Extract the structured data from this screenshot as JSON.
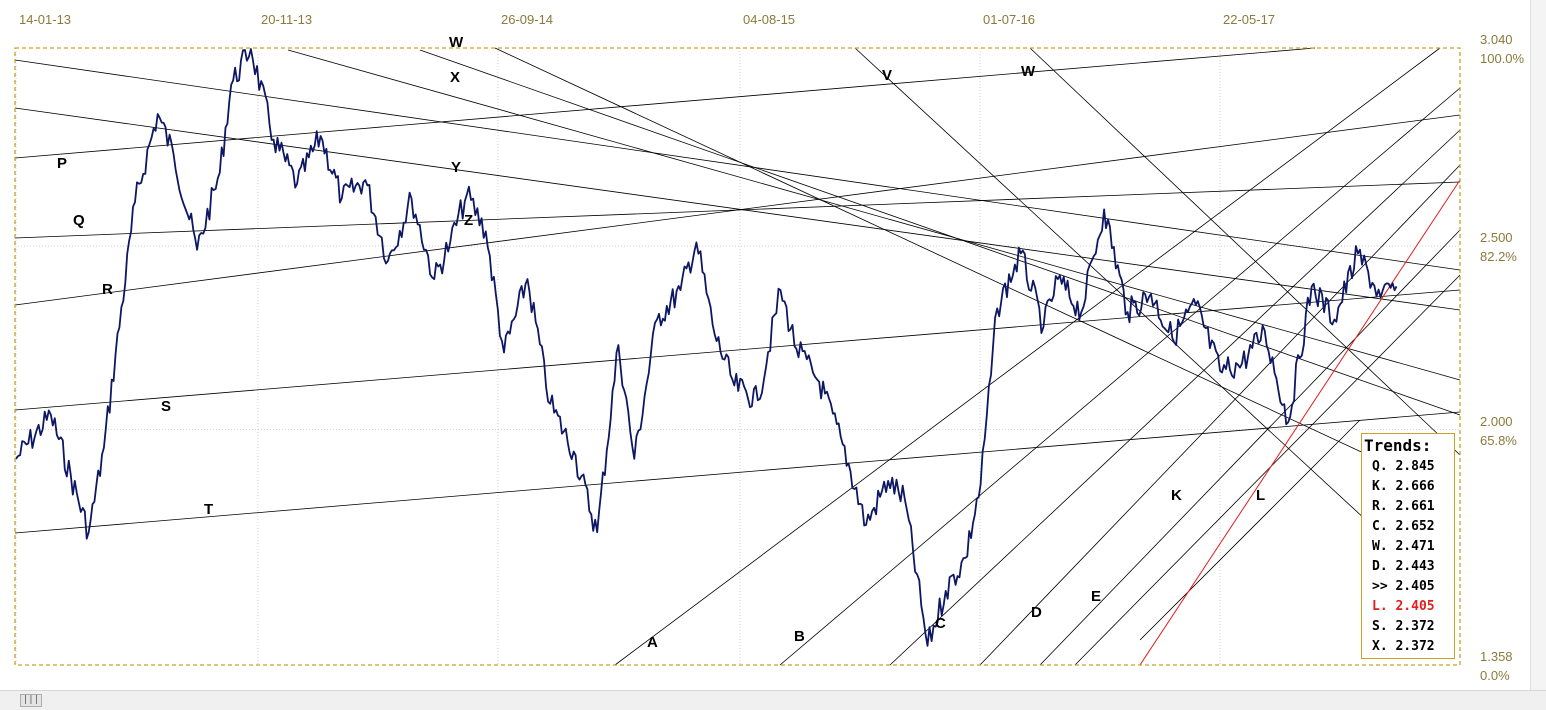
{
  "chart_data": {
    "type": "line",
    "title": "",
    "x_ticks": [
      "14-01-13",
      "20-11-13",
      "26-09-14",
      "04-08-15",
      "01-07-16",
      "22-05-17"
    ],
    "y_ticks_right": [
      {
        "value": "3.040",
        "pct": "100.0%"
      },
      {
        "value": "2.500",
        "pct": "82.2%"
      },
      {
        "value": "2.000",
        "pct": "65.8%"
      },
      {
        "value": "1.358",
        "pct": "0.0%"
      }
    ],
    "ylim": [
      1.358,
      3.04
    ],
    "series": [
      {
        "color": "#0d1763",
        "x": [
          "2013-01-14",
          "2013-03-01",
          "2013-04-20",
          "2013-05-10",
          "2013-06-20",
          "2013-07-20",
          "2013-08-10",
          "2013-09-10",
          "2013-10-10",
          "2013-10-25",
          "2013-11-20",
          "2013-12-20",
          "2014-01-20",
          "2014-02-20",
          "2014-03-20",
          "2014-04-20",
          "2014-05-20",
          "2014-06-20",
          "2014-07-20",
          "2014-08-10",
          "2014-09-01",
          "2014-09-26",
          "2014-10-20",
          "2014-11-20",
          "2014-12-20",
          "2015-01-20",
          "2015-02-20",
          "2015-03-20",
          "2015-04-10",
          "2015-05-10",
          "2015-06-10",
          "2015-07-01",
          "2015-07-25",
          "2015-08-20",
          "2015-09-20",
          "2015-10-20",
          "2015-11-10",
          "2015-12-10",
          "2016-01-10",
          "2016-02-10",
          "2016-03-10",
          "2016-04-01",
          "2016-05-01",
          "2016-05-25",
          "2016-06-20",
          "2016-07-10",
          "2016-08-01",
          "2016-09-01",
          "2016-10-01",
          "2016-10-20",
          "2016-11-20",
          "2016-12-20",
          "2017-01-20",
          "2017-02-20",
          "2017-03-20",
          "2017-04-20",
          "2017-05-22",
          "2017-06-20",
          "2017-07-20",
          "2017-08-20",
          "2017-09-20",
          "2017-10-20",
          "2017-11-20",
          "2017-12-20",
          "2018-01-10"
        ],
        "values": [
          1.92,
          2.04,
          1.72,
          1.95,
          2.62,
          2.86,
          2.75,
          2.49,
          2.7,
          2.94,
          3.04,
          2.79,
          2.67,
          2.8,
          2.63,
          2.68,
          2.46,
          2.63,
          2.41,
          2.51,
          2.64,
          2.54,
          2.21,
          2.41,
          2.07,
          1.94,
          1.72,
          2.23,
          1.92,
          2.3,
          2.38,
          2.51,
          2.26,
          2.12,
          2.08,
          2.38,
          2.22,
          2.13,
          1.96,
          1.74,
          1.86,
          1.81,
          1.41,
          1.56,
          1.65,
          1.85,
          2.33,
          2.48,
          2.28,
          2.41,
          2.32,
          2.6,
          2.32,
          2.37,
          2.25,
          2.34,
          2.16,
          2.18,
          2.27,
          2.02,
          2.39,
          2.3,
          2.48,
          2.36,
          2.39
        ]
      }
    ],
    "trend_labels": [
      "W",
      "X",
      "V",
      "W",
      "P",
      "Y",
      "Q",
      "Z",
      "R",
      "S",
      "T",
      "A",
      "B",
      "C",
      "D",
      "E",
      "K",
      "L"
    ],
    "trends_panel": {
      "title": "Trends:",
      "rows": [
        {
          "label": "Q.",
          "value": "2.845"
        },
        {
          "label": "K.",
          "value": "2.666"
        },
        {
          "label": "R.",
          "value": "2.661"
        },
        {
          "label": "C.",
          "value": "2.652"
        },
        {
          "label": "W.",
          "value": "2.471"
        },
        {
          "label": "D.",
          "value": "2.443"
        },
        {
          "label": ">>",
          "value": "2.405"
        },
        {
          "label": "L.",
          "value": "2.405"
        },
        {
          "label": "S.",
          "value": "2.372"
        },
        {
          "label": "X.",
          "value": "2.372"
        }
      ]
    },
    "grid": true,
    "colors": {
      "price_line": "#0d1763",
      "trend_lines": "#000000",
      "highlight_trend": "#e0201c",
      "frame": "#c9a227",
      "axis_text": "#8b7a3a",
      "grid": "#c8c8c8"
    }
  },
  "scrollbar": {
    "thumb_icon": "grip-icon"
  }
}
